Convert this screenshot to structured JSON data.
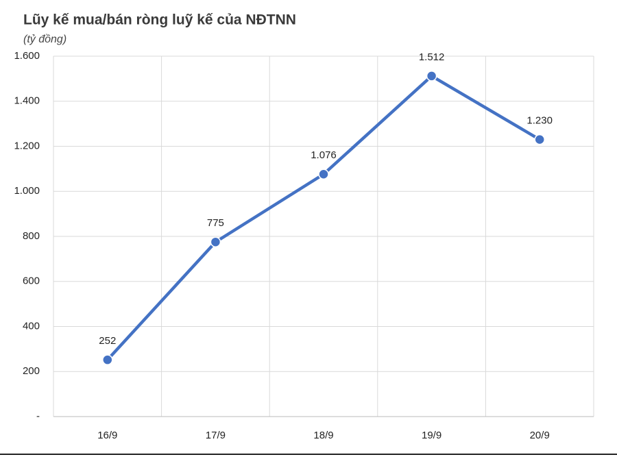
{
  "chart_data": {
    "type": "line",
    "title": "Lũy kế mua/bán ròng luỹ kế của NĐTNN",
    "subtitle": "(tỷ đồng)",
    "categories": [
      "16/9",
      "17/9",
      "18/9",
      "19/9",
      "20/9"
    ],
    "series": [
      {
        "color": "#4472c4",
        "values": [
          252,
          775,
          1076,
          1512,
          1230
        ],
        "value_labels": [
          "252",
          "775",
          "1.076",
          "1.512",
          "1.230"
        ]
      }
    ],
    "ylim": [
      0,
      1600
    ],
    "yticks": [
      {
        "value": 0,
        "label": "-"
      },
      200,
      400,
      600,
      800,
      {
        "value": 1000,
        "label": "1.000"
      },
      {
        "value": 1200,
        "label": "1.200"
      },
      {
        "value": 1400,
        "label": "1.400"
      },
      {
        "value": 1600,
        "label": "1.600"
      }
    ],
    "grid": true
  }
}
